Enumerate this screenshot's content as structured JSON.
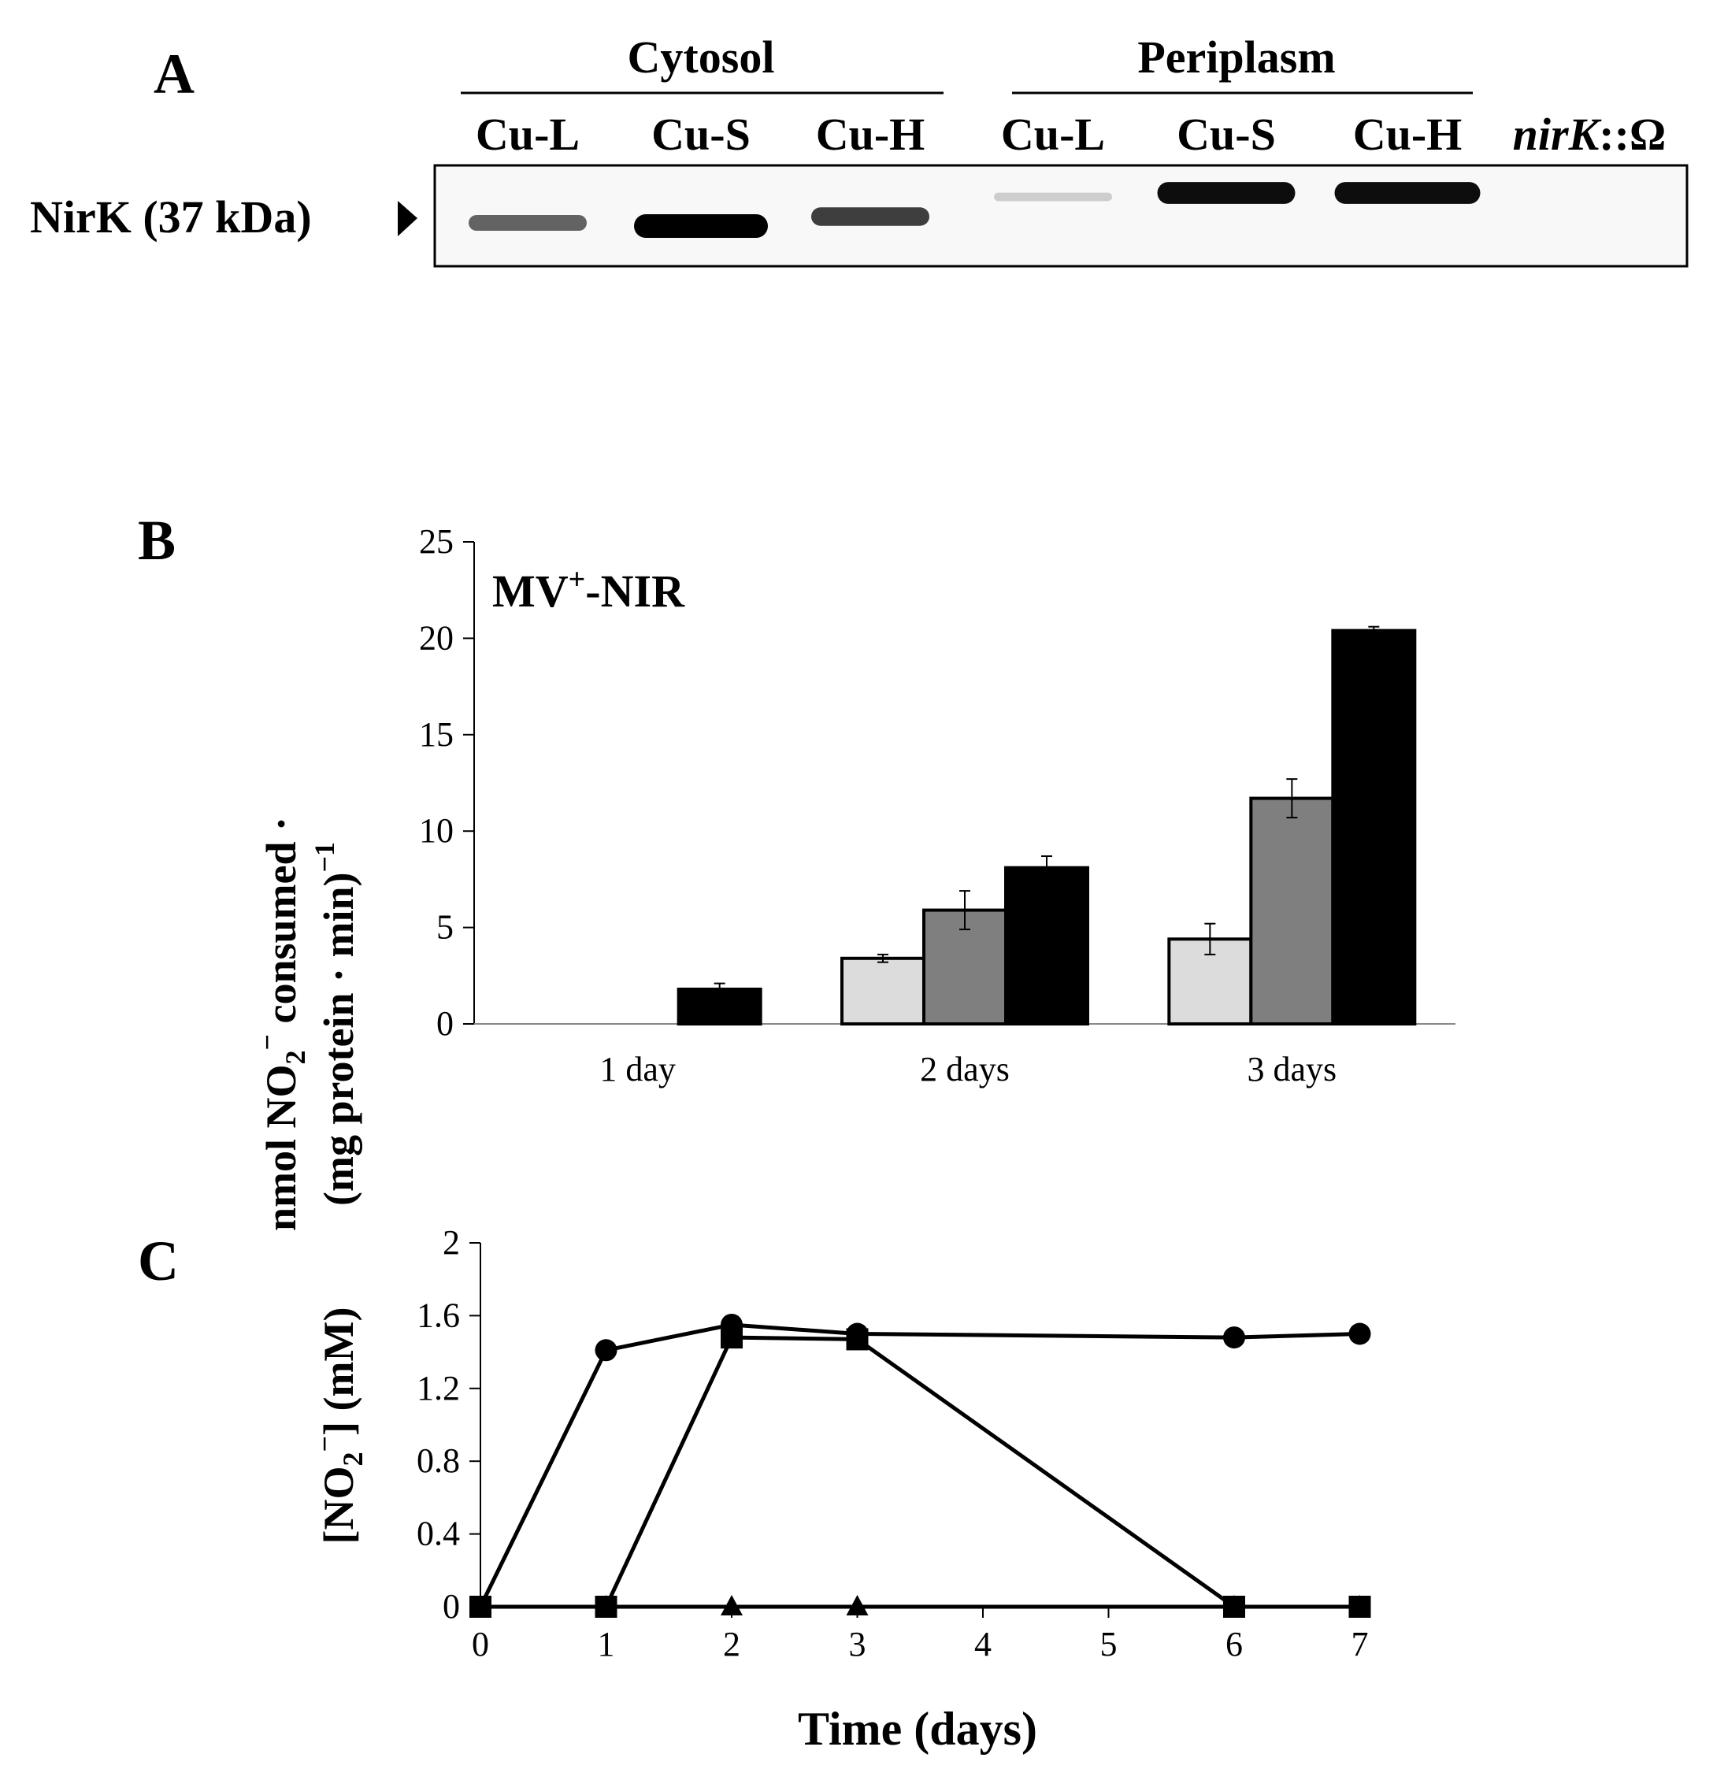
{
  "panel_a": {
    "letter": "A",
    "group_cytosol": "Cytosol",
    "group_periplasm": "Periplasm",
    "lanes": [
      "Cu-L",
      "Cu-S",
      "Cu-H",
      "Cu-L",
      "Cu-S",
      "Cu-H"
    ],
    "mutant_lane_italic": "nirK",
    "mutant_lane_rest": "::Ω",
    "band_label": "NirK (37 kDa)",
    "band_intensity": [
      0.55,
      1.0,
      0.7,
      0.12,
      0.9,
      0.9,
      0.0
    ]
  },
  "panel_b": {
    "letter": "B",
    "annotation_main": "MV",
    "annotation_sup": "+",
    "annotation_rest": "-NIR",
    "ylabel_line1_a": "nmol NO",
    "ylabel_line1_sub": "2",
    "ylabel_line1_sup": "−",
    "ylabel_line1_b": " consumed ·",
    "ylabel_line2_a": "(mg protein · min)",
    "ylabel_line2_sup": "−1"
  },
  "panel_c": {
    "letter": "C",
    "ylabel_a": "[NO",
    "ylabel_sub": "2",
    "ylabel_sup": "−",
    "ylabel_b": "] (mM)"
  },
  "chart_data": [
    {
      "type": "bar",
      "categories": [
        "1 day",
        "2 days",
        "3 days"
      ],
      "series": [
        {
          "values": [
            0,
            3.4,
            4.4
          ],
          "errors": [
            0,
            0.2,
            0.8
          ],
          "color": "#dcdcdc"
        },
        {
          "values": [
            0,
            5.9,
            11.7
          ],
          "errors": [
            0,
            1.0,
            1.0
          ],
          "color": "#7f7f7f"
        },
        {
          "values": [
            1.8,
            8.1,
            20.4
          ],
          "errors": [
            0.3,
            0.6,
            0.2
          ],
          "color": "#000000"
        }
      ],
      "ylim": [
        0,
        25
      ],
      "yticks": [
        0,
        5,
        10,
        15,
        20,
        25
      ]
    },
    {
      "type": "line",
      "x_ticks": [
        "0",
        "1",
        "2",
        "3",
        "4",
        "5",
        "6",
        "7"
      ],
      "xlabel": "Time (days)",
      "ylim": [
        0,
        2
      ],
      "yticks": [
        "0",
        "0.4",
        "0.8",
        "1.2",
        "1.6",
        "2"
      ],
      "series": [
        {
          "marker": "circle",
          "x": [
            "0",
            "1",
            "2",
            "3",
            "6",
            "7"
          ],
          "y": [
            0,
            1.41,
            1.55,
            1.5,
            1.48,
            1.5
          ]
        },
        {
          "marker": "square",
          "x": [
            "0",
            "1",
            "2",
            "3",
            "6",
            "7"
          ],
          "y": [
            0,
            0,
            1.48,
            1.47,
            0,
            0
          ]
        },
        {
          "marker": "triangle",
          "x": [
            "0",
            "1",
            "2",
            "3",
            "6",
            "7"
          ],
          "y": [
            0,
            0,
            0,
            0,
            0,
            0
          ]
        }
      ]
    }
  ]
}
